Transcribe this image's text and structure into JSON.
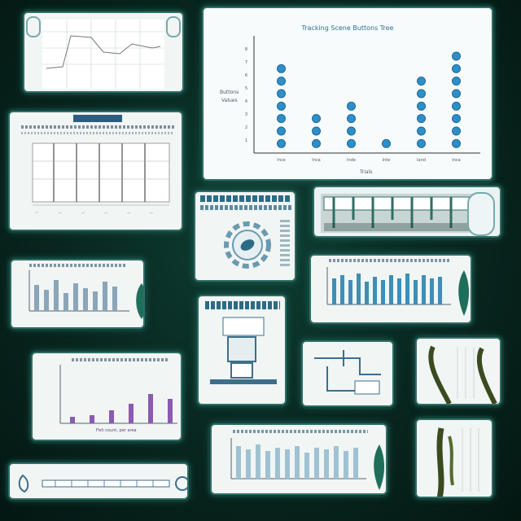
{
  "main_chart": {
    "title": "Tracking Scene Buttons Tree",
    "ylabel": "Buttons",
    "ylabel2": "Values",
    "xlabel": "Trials",
    "chart_data": {
      "type": "scatter",
      "categories": [
        "Ince",
        "Inca",
        "Inde",
        "Inte",
        "Iand",
        "Inca"
      ],
      "values": [
        7,
        3,
        4,
        1,
        6,
        8
      ],
      "yticks": [
        "8",
        "7",
        "6",
        "5",
        "4",
        "3",
        "2",
        "1"
      ],
      "ylim": [
        0,
        9
      ]
    }
  },
  "bottom_chart_labels": {
    "legend": "Fish count, per area"
  },
  "colors": {
    "accent": "#2e8fc8",
    "bar": "#8aa6b8",
    "purple": "#8a5bb0",
    "frame": "#2f6e64"
  }
}
